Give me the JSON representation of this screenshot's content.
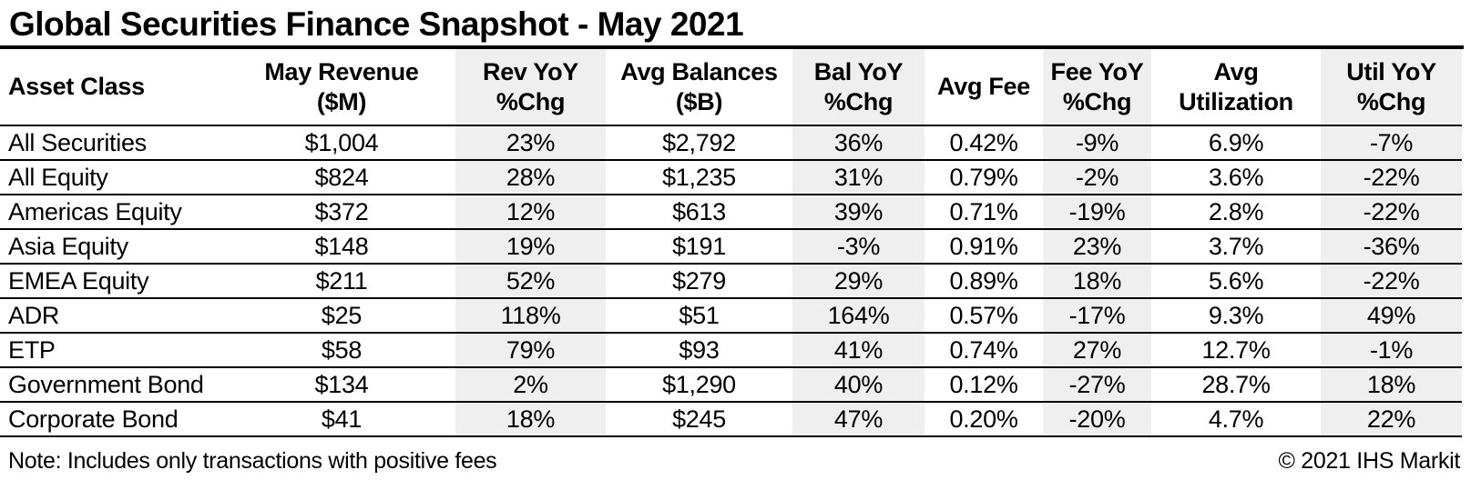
{
  "chart_data": {
    "type": "table",
    "title": "Global Securities Finance Snapshot - May 2021",
    "columns": [
      {
        "key": "asset-class",
        "line1": "Asset Class",
        "line2": "",
        "shaded": false,
        "align": "left"
      },
      {
        "key": "may-revenue",
        "line1": "May Revenue",
        "line2": "($M)",
        "shaded": false,
        "align": "center"
      },
      {
        "key": "rev-yoy",
        "line1": "Rev YoY",
        "line2": "%Chg",
        "shaded": true,
        "align": "center"
      },
      {
        "key": "avg-balances",
        "line1": "Avg Balances",
        "line2": "($B)",
        "shaded": false,
        "align": "center"
      },
      {
        "key": "bal-yoy",
        "line1": "Bal YoY",
        "line2": "%Chg",
        "shaded": true,
        "align": "center"
      },
      {
        "key": "avg-fee",
        "line1": "Avg Fee",
        "line2": "",
        "shaded": false,
        "align": "center"
      },
      {
        "key": "fee-yoy",
        "line1": "Fee YoY",
        "line2": "%Chg",
        "shaded": true,
        "align": "center"
      },
      {
        "key": "avg-utilization",
        "line1": "Avg",
        "line2": "Utilization",
        "shaded": false,
        "align": "center"
      },
      {
        "key": "util-yoy",
        "line1": "Util YoY",
        "line2": "%Chg",
        "shaded": true,
        "align": "center"
      }
    ],
    "rows": [
      [
        "All Securities",
        "$1,004",
        "23%",
        "$2,792",
        "36%",
        "0.42%",
        "-9%",
        "6.9%",
        "-7%"
      ],
      [
        "All Equity",
        "$824",
        "28%",
        "$1,235",
        "31%",
        "0.79%",
        "-2%",
        "3.6%",
        "-22%"
      ],
      [
        "Americas Equity",
        "$372",
        "12%",
        "$613",
        "39%",
        "0.71%",
        "-19%",
        "2.8%",
        "-22%"
      ],
      [
        "Asia Equity",
        "$148",
        "19%",
        "$191",
        "-3%",
        "0.91%",
        "23%",
        "3.7%",
        "-36%"
      ],
      [
        "EMEA Equity",
        "$211",
        "52%",
        "$279",
        "29%",
        "0.89%",
        "18%",
        "5.6%",
        "-22%"
      ],
      [
        "ADR",
        "$25",
        "118%",
        "$51",
        "164%",
        "0.57%",
        "-17%",
        "9.3%",
        "49%"
      ],
      [
        "ETP",
        "$58",
        "79%",
        "$93",
        "41%",
        "0.74%",
        "27%",
        "12.7%",
        "-1%"
      ],
      [
        "Government Bond",
        "$134",
        "2%",
        "$1,290",
        "40%",
        "0.12%",
        "-27%",
        "28.7%",
        "18%"
      ],
      [
        "Corporate Bond",
        "$41",
        "18%",
        "$245",
        "47%",
        "0.20%",
        "-20%",
        "4.7%",
        "22%"
      ]
    ],
    "note": "Note: Includes only transactions with positive fees",
    "copyright": "© 2021 IHS Markit",
    "layout_hints": {
      "shaded_column_color": "#efefef",
      "grid": "horizontal-rules-only",
      "header_rows": 1
    }
  },
  "colors": {
    "shaded_column": "#efefef",
    "border": "#000000",
    "text": "#000000",
    "background": "#ffffff"
  }
}
